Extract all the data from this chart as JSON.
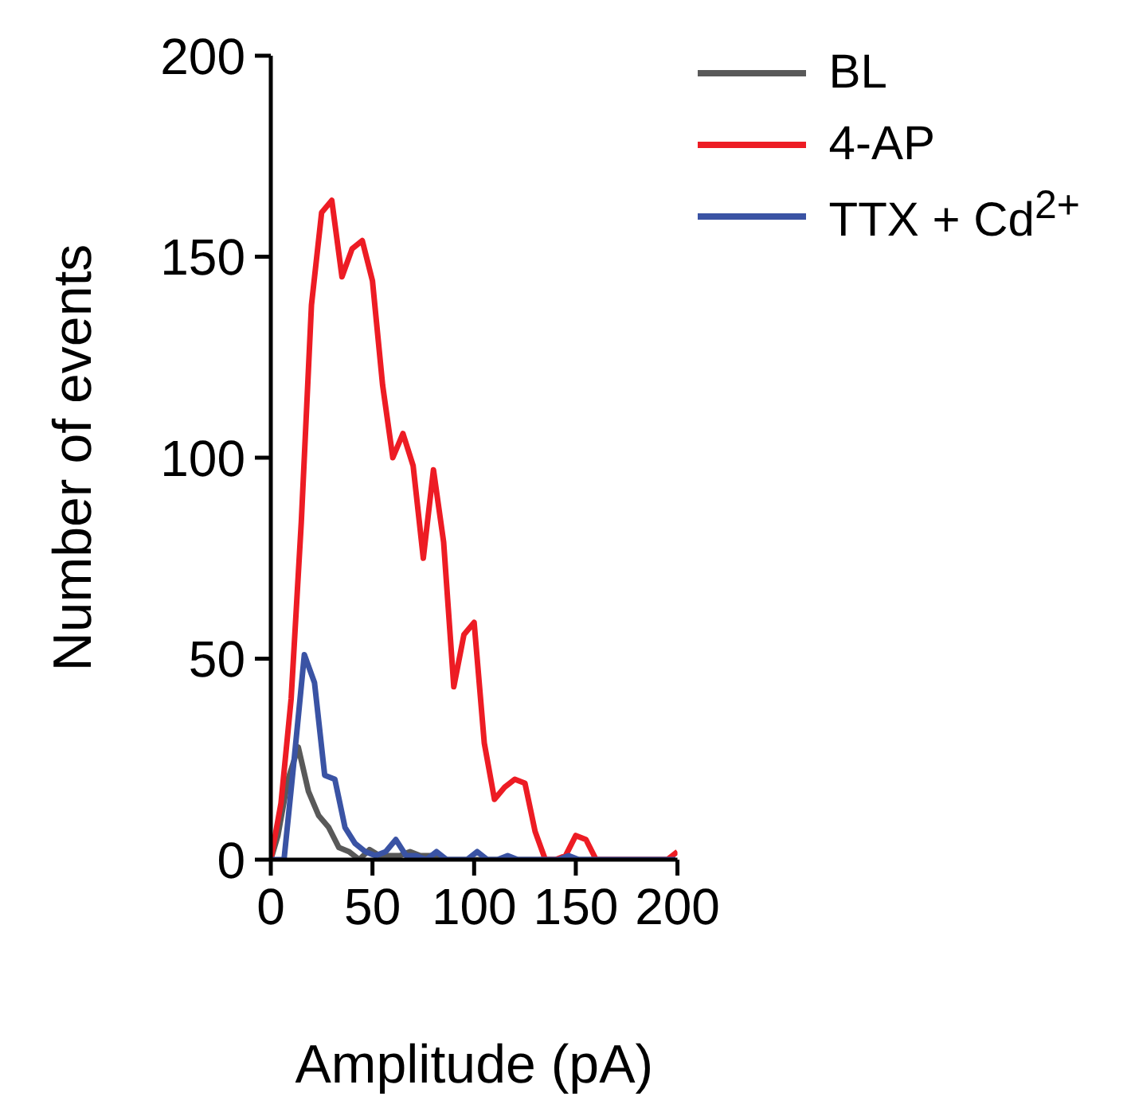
{
  "chart_data": {
    "type": "line",
    "xlabel": "Amplitude (pA)",
    "ylabel": "Number of events",
    "xlim": [
      0,
      200
    ],
    "xticks": [
      0,
      50,
      100,
      150,
      200
    ],
    "ylim": [
      0,
      200
    ],
    "yticks": [
      0,
      50,
      100,
      150,
      200
    ],
    "grid": false,
    "legend": "top right",
    "marker": "none",
    "line_style": "solid",
    "series": [
      {
        "name": "BL",
        "color": "#595959",
        "x": [
          0,
          3.5,
          8.5,
          13.5,
          18.5,
          23.5,
          28.5,
          33.5,
          38.5,
          43.5,
          48.5,
          53.5,
          58.5,
          63.5,
          68.5,
          73.5,
          78.5,
          83.5,
          88.5,
          198.5
        ],
        "values": [
          0,
          6,
          20,
          28,
          17,
          11,
          8,
          3,
          2,
          0,
          2.5,
          1,
          1,
          1,
          2,
          1,
          1,
          0,
          0,
          0
        ]
      },
      {
        "name": "4-AP",
        "color": "#ed1c24",
        "x": [
          0,
          5,
          10,
          15,
          20,
          25,
          30,
          35,
          40,
          45,
          50,
          55,
          60,
          65,
          70,
          75,
          80,
          85,
          90,
          95,
          100,
          105,
          110,
          115,
          120,
          125,
          130,
          135,
          140,
          145,
          150,
          155,
          160,
          165,
          170,
          175,
          180,
          185,
          190,
          195,
          200
        ],
        "values": [
          0,
          14,
          40,
          84,
          138,
          161,
          164,
          145,
          152,
          154,
          144,
          118,
          100,
          106,
          98,
          75,
          97,
          79,
          43,
          56,
          59,
          29,
          15,
          18,
          20,
          19,
          7,
          0,
          0,
          1,
          6,
          5,
          0,
          0,
          0,
          0,
          0,
          0,
          0,
          0,
          2
        ]
      },
      {
        "name": "TTX + Cd$^{2+}$",
        "color": "#3a53a4",
        "x": [
          0,
          6.5,
          11.5,
          16.5,
          21.5,
          26.5,
          31.5,
          36.5,
          41.5,
          46.5,
          51.5,
          56.5,
          61.5,
          66.5,
          71.5,
          76.5,
          81.5,
          86.5,
          96.5,
          101.5,
          106.5,
          111.5,
          116.5,
          121.5,
          141.5,
          146.5,
          151.5,
          199
        ],
        "values": [
          0,
          0,
          25,
          51,
          44,
          21,
          20,
          8,
          4,
          2,
          1,
          2,
          5,
          1,
          1,
          0,
          2,
          0,
          0,
          2,
          0,
          0,
          1,
          0,
          0,
          1,
          0,
          0
        ]
      }
    ]
  }
}
